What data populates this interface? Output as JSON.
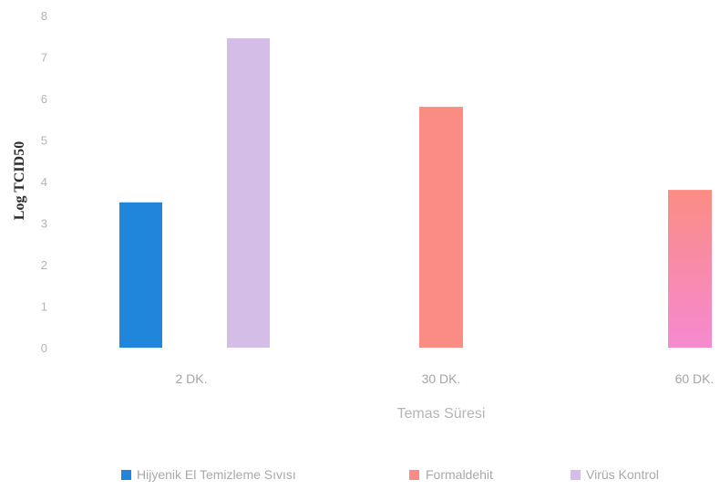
{
  "chart_data": {
    "type": "bar",
    "title": "",
    "xlabel": "Temas Süresi",
    "ylabel": "Log TCID50",
    "ylim": [
      0,
      8
    ],
    "yticks": [
      0,
      1,
      2,
      3,
      4,
      5,
      6,
      7,
      8
    ],
    "grid": false,
    "legend_position": "bottom",
    "categories": [
      "2 DK.",
      "30 DK.",
      "60 DK."
    ],
    "series": [
      {
        "name": "Hijyenik El Temizleme Sıvısı",
        "color": "#1f86dc",
        "values": [
          3.5,
          null,
          null
        ]
      },
      {
        "name": "Formaldehit",
        "color": "#fb8c84",
        "values": [
          null,
          5.8,
          3.8
        ]
      },
      {
        "name": "Virüs Kontrol",
        "color": "#d4bde6",
        "values": [
          7.45,
          null,
          null
        ]
      }
    ]
  }
}
